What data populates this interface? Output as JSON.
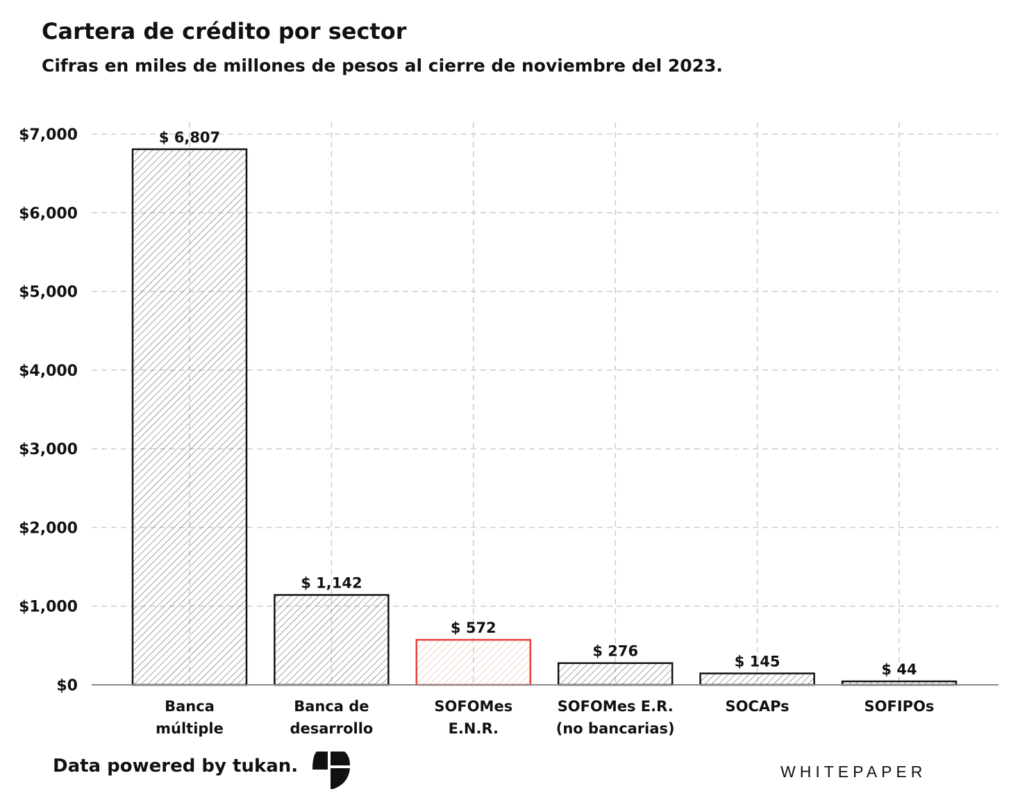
{
  "title": "Cartera de crédito por sector",
  "subtitle": "Cifras en miles de millones de pesos al cierre de noviembre del 2023.",
  "footer": {
    "credit": "Data powered by tukan.",
    "brand": "WHITEPAPER",
    "logo_icon": "tukan-logo-icon"
  },
  "colors": {
    "bar_stroke": "#111111",
    "highlight_stroke": "#e8413b",
    "hatch": "#555555",
    "highlight_hatch": "#f2a5a2",
    "grid": "#cfcfcf"
  },
  "chart_data": {
    "type": "bar",
    "title": "Cartera de crédito por sector",
    "xlabel": "",
    "ylabel": "",
    "ylim": [
      0,
      7000
    ],
    "yticks": [
      0,
      1000,
      2000,
      3000,
      4000,
      5000,
      6000,
      7000
    ],
    "ytick_labels": [
      "$0",
      "$1,000",
      "$2,000",
      "$3,000",
      "$4,000",
      "$5,000",
      "$6,000",
      "$7,000"
    ],
    "grid": true,
    "categories": [
      [
        "Banca",
        "múltiple"
      ],
      [
        "Banca de",
        "desarrollo"
      ],
      [
        "SOFOMes",
        "E.N.R."
      ],
      [
        "SOFOMes E.R.",
        "(no bancarias)"
      ],
      [
        "SOCAPs"
      ],
      [
        "SOFIPOs"
      ]
    ],
    "values": [
      6807,
      1142,
      572,
      276,
      145,
      44
    ],
    "data_labels": [
      "$ 6,807",
      "$ 1,142",
      "$ 572",
      "$ 276",
      "$ 145",
      "$ 44"
    ],
    "highlight_index": 2
  }
}
